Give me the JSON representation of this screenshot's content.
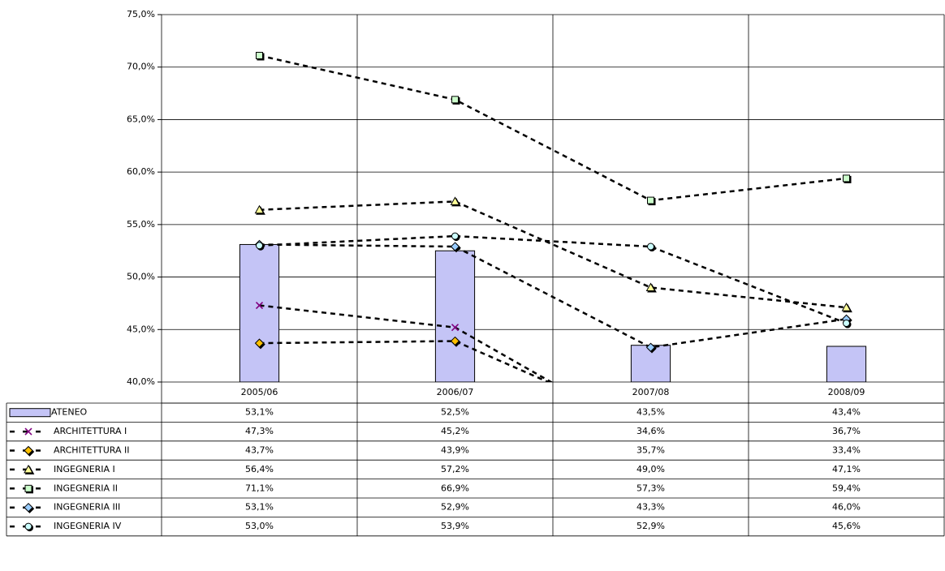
{
  "chart_data": {
    "type": "combo",
    "categories": [
      "2005/06",
      "2006/07",
      "2007/08",
      "2008/09"
    ],
    "ylim": [
      40,
      75
    ],
    "yticks": [
      {
        "value": 40,
        "label": "40,0%"
      },
      {
        "value": 45,
        "label": "45,0%"
      },
      {
        "value": 50,
        "label": "50,0%"
      },
      {
        "value": 55,
        "label": "55,0%"
      },
      {
        "value": 60,
        "label": "60,0%"
      },
      {
        "value": 65,
        "label": "65,0%"
      },
      {
        "value": 70,
        "label": "70,0%"
      },
      {
        "value": 75,
        "label": "75,0%"
      }
    ],
    "grid": true,
    "series": [
      {
        "name": "ATENEO",
        "type": "bar",
        "color": "#c4c4f6",
        "values": [
          53.1,
          52.5,
          43.5,
          43.4
        ],
        "value_labels": [
          "53,1%",
          "52,5%",
          "43,5%",
          "43,4%"
        ]
      },
      {
        "name": "ARCHITETTURA I",
        "type": "line",
        "marker": "x",
        "color": "#800080",
        "values": [
          47.3,
          45.2,
          34.6,
          36.7
        ],
        "value_labels": [
          "47,3%",
          "45,2%",
          "34,6%",
          "36,7%"
        ]
      },
      {
        "name": "ARCHITETTURA II",
        "type": "line",
        "marker": "diamond",
        "color": "#ffc000",
        "values": [
          43.7,
          43.9,
          35.7,
          33.4
        ],
        "value_labels": [
          "43,7%",
          "43,9%",
          "35,7%",
          "33,4%"
        ]
      },
      {
        "name": "INGEGNERIA I",
        "type": "line",
        "marker": "triangle",
        "color": "#ffff99",
        "values": [
          56.4,
          57.2,
          49.0,
          47.1
        ],
        "value_labels": [
          "56,4%",
          "57,2%",
          "49,0%",
          "47,1%"
        ]
      },
      {
        "name": "INGEGNERIA II",
        "type": "line",
        "marker": "square",
        "color": "#ccffcc",
        "values": [
          71.1,
          66.9,
          57.3,
          59.4
        ],
        "value_labels": [
          "71,1%",
          "66,9%",
          "57,3%",
          "59,4%"
        ]
      },
      {
        "name": "INGEGNERIA III",
        "type": "line",
        "marker": "diamond",
        "color": "#99ccff",
        "values": [
          53.1,
          52.9,
          43.3,
          46.0
        ],
        "value_labels": [
          "53,1%",
          "52,9%",
          "43,3%",
          "46,0%"
        ]
      },
      {
        "name": "INGEGNERIA IV",
        "type": "line",
        "marker": "circle",
        "color": "#ccffff",
        "values": [
          53.0,
          53.9,
          52.9,
          45.6
        ],
        "value_labels": [
          "53,0%",
          "53,9%",
          "52,9%",
          "45,6%"
        ]
      }
    ]
  }
}
